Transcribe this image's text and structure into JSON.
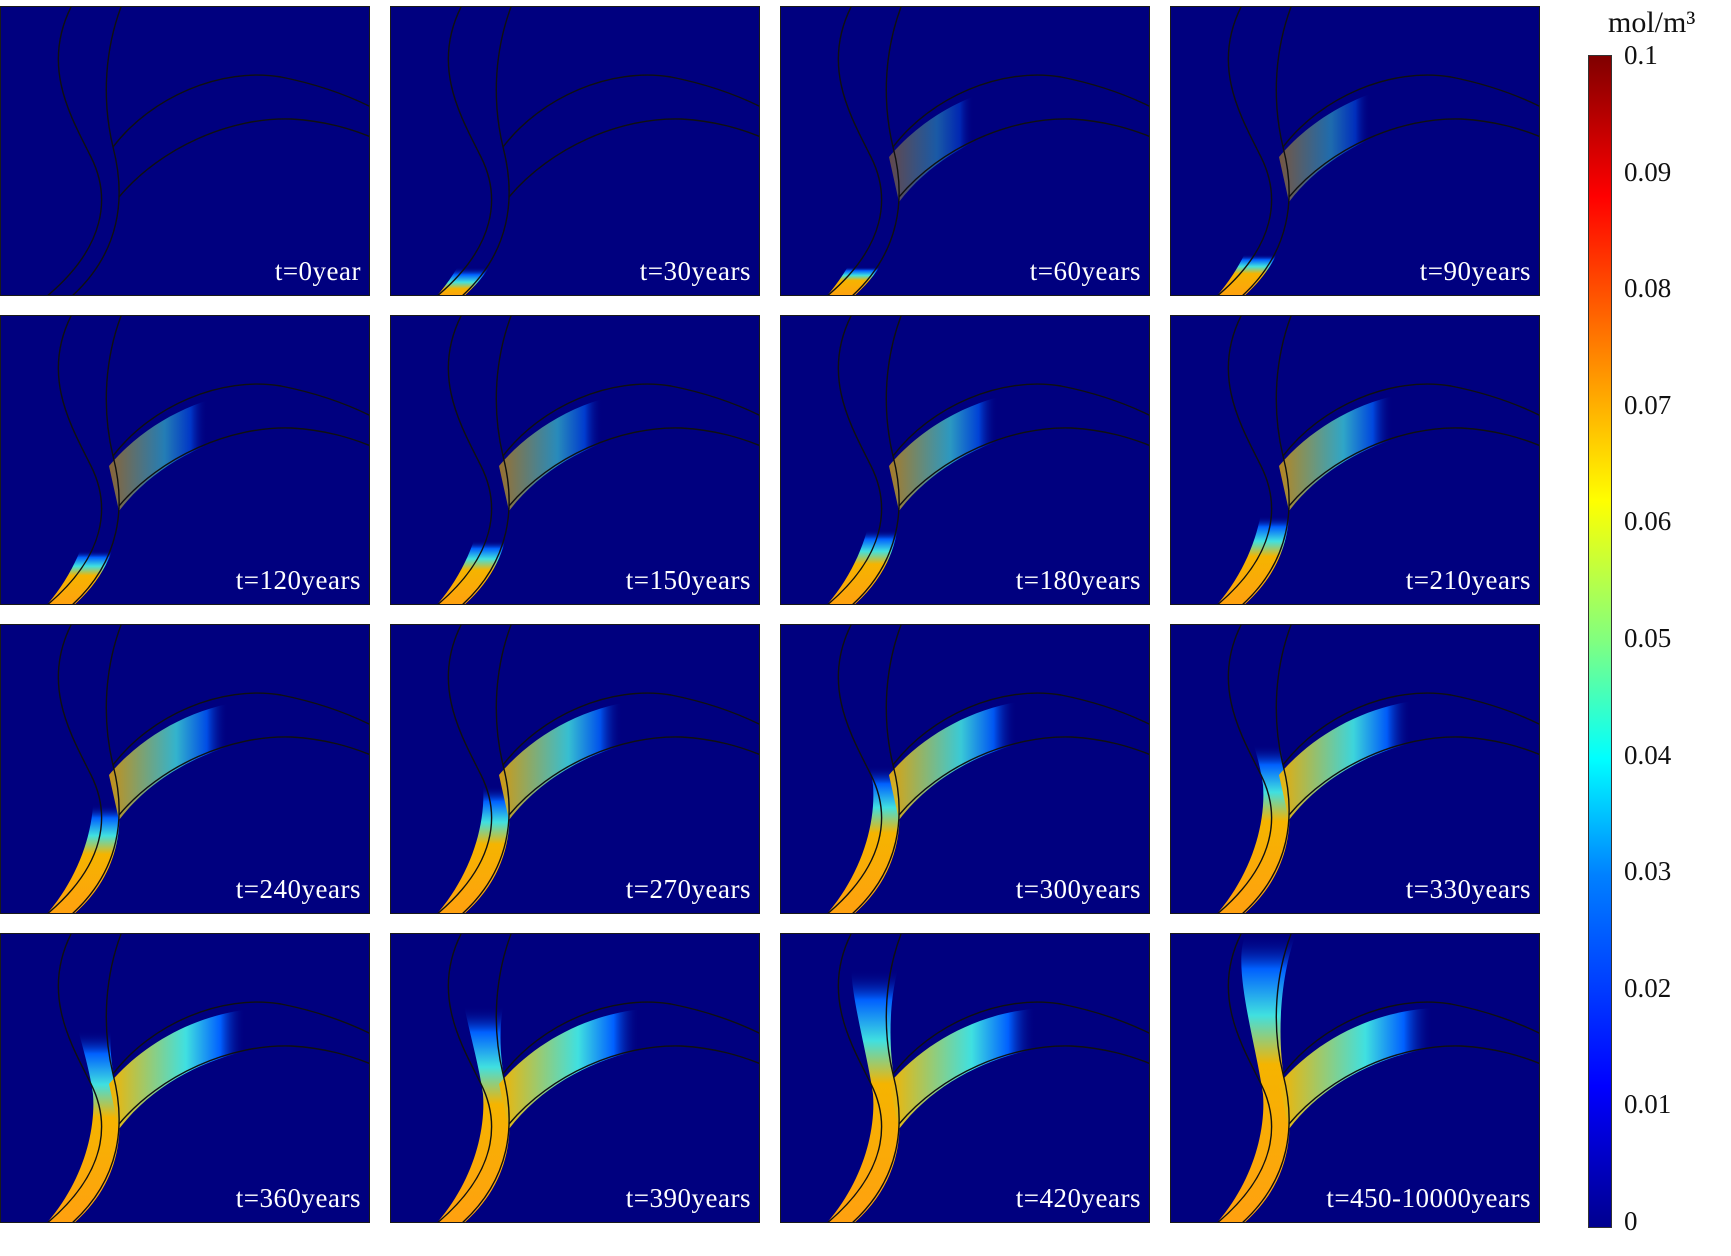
{
  "figure": {
    "panels": [
      {
        "label": "t=0year",
        "level": 0.0
      },
      {
        "label": "t=30years",
        "level": 0.1
      },
      {
        "label": "t=60years",
        "level": 0.2
      },
      {
        "label": "t=90years",
        "level": 0.28
      },
      {
        "label": "t=120years",
        "level": 0.36
      },
      {
        "label": "t=150years",
        "level": 0.42
      },
      {
        "label": "t=180years",
        "level": 0.48
      },
      {
        "label": "t=210years",
        "level": 0.54
      },
      {
        "label": "t=240years",
        "level": 0.6
      },
      {
        "label": "t=270years",
        "level": 0.65
      },
      {
        "label": "t=300years",
        "level": 0.7
      },
      {
        "label": "t=330years",
        "level": 0.75
      },
      {
        "label": "t=360years",
        "level": 0.8
      },
      {
        "label": "t=390years",
        "level": 0.85
      },
      {
        "label": "t=420years",
        "level": 0.92
      },
      {
        "label": "t=450-10000years",
        "level": 1.0
      }
    ],
    "colorbar": {
      "unit": "mol/m³",
      "ticks": [
        "0.1",
        "0.09",
        "0.08",
        "0.07",
        "0.06",
        "0.05",
        "0.04",
        "0.03",
        "0.02",
        "0.01",
        "0"
      ],
      "min": 0,
      "max": 0.1,
      "colormap": "rainbow"
    }
  }
}
